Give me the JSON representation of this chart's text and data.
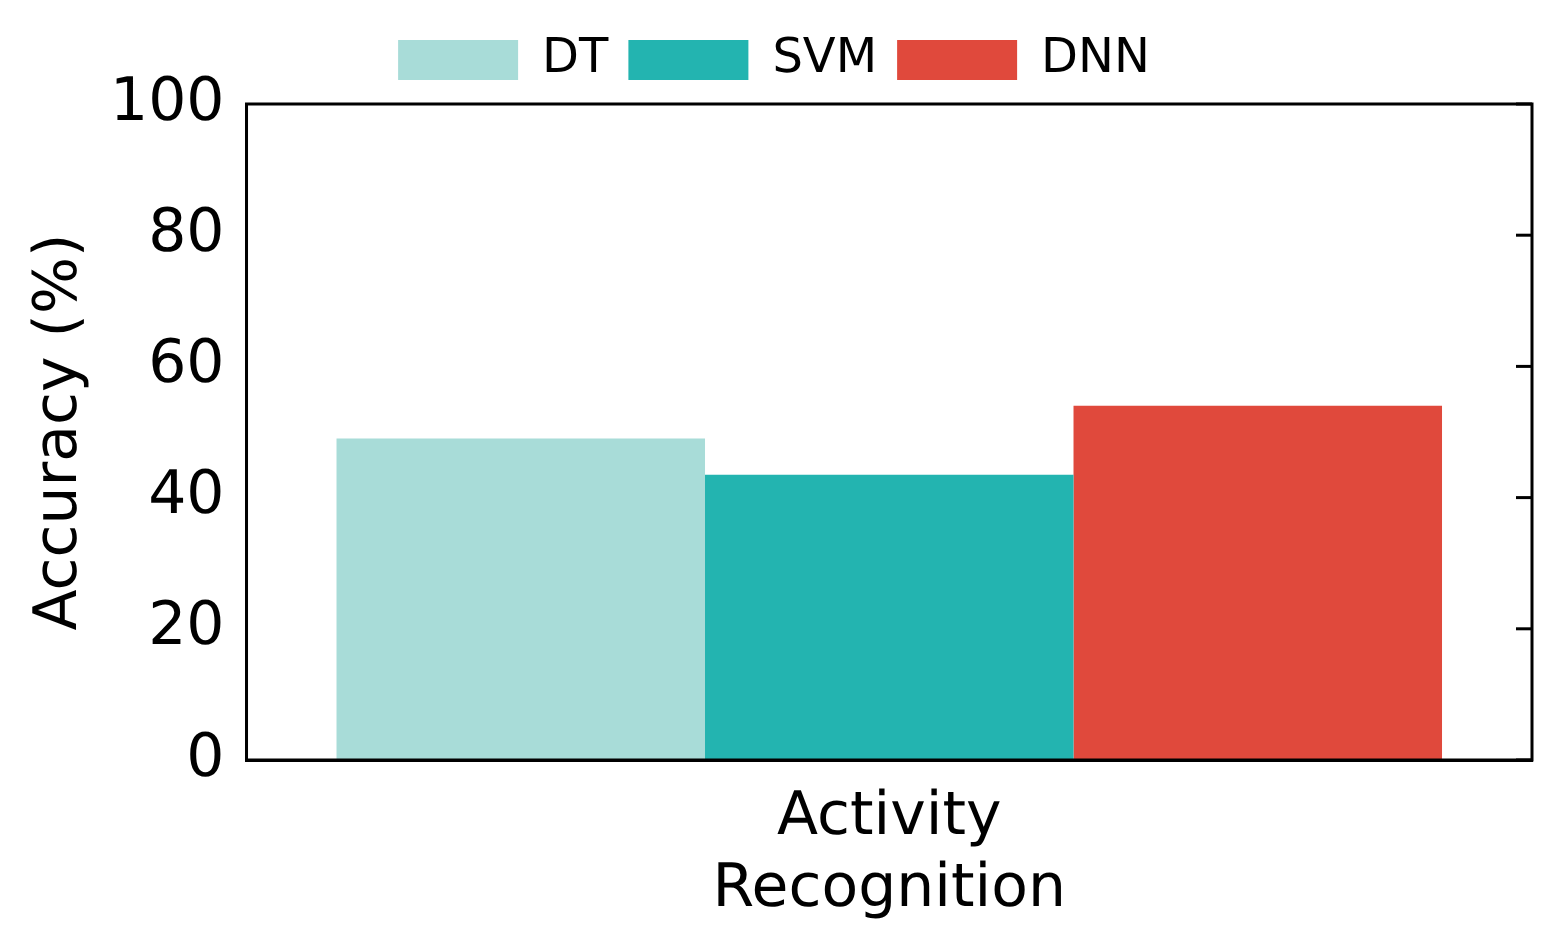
{
  "chart_data": {
    "type": "bar",
    "ylabel": "Accuracy (%)",
    "categories": [
      "Activity Recognition"
    ],
    "series": [
      {
        "name": "DT",
        "color": "#a8dcd8",
        "values": [
          49
        ]
      },
      {
        "name": "SVM",
        "color": "#23b4b0",
        "values": [
          43.5
        ]
      },
      {
        "name": "DNN",
        "color": "#e0493c",
        "values": [
          54
        ]
      }
    ],
    "ylim": [
      0,
      100
    ],
    "yticks": [
      0,
      20,
      40,
      60,
      80,
      100
    ],
    "grid": false,
    "legend": "top"
  }
}
